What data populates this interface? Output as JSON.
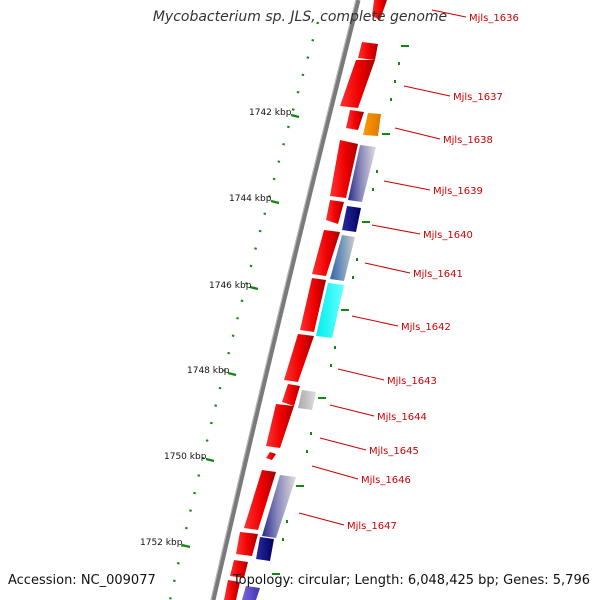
{
  "title": "Mycobacterium sp. JLS, complete genome",
  "accession_text": "Accession: NC_009077",
  "summary_text": "Topology: circular; Length: 6,048,425 bp; Genes: 5,796",
  "colors": {
    "backbone": "#888888",
    "tick": "#118811",
    "label": "#cc0000",
    "cds": "#ee0000",
    "orange": "#ff8800",
    "navy": "#000080",
    "steel": "#4477aa",
    "cyan": "#00ffff",
    "grey": "#bbbbbb",
    "indigo": "#6655cc"
  },
  "ruler_labels": [
    {
      "id": "kbp-1742",
      "text": "1742 kbp"
    },
    {
      "id": "kbp-1744",
      "text": "1744 kbp"
    },
    {
      "id": "kbp-1746",
      "text": "1746 kbp"
    },
    {
      "id": "kbp-1748",
      "text": "1748 kbp"
    },
    {
      "id": "kbp-1750",
      "text": "1750 kbp"
    },
    {
      "id": "kbp-1752",
      "text": "1752 kbp"
    }
  ],
  "gene_labels": [
    {
      "id": "mjls-1636",
      "text": "Mjls_1636"
    },
    {
      "id": "mjls-1637",
      "text": "Mjls_1637"
    },
    {
      "id": "mjls-1638",
      "text": "Mjls_1638"
    },
    {
      "id": "mjls-1639",
      "text": "Mjls_1639"
    },
    {
      "id": "mjls-1640",
      "text": "Mjls_1640"
    },
    {
      "id": "mjls-1641",
      "text": "Mjls_1641"
    },
    {
      "id": "mjls-1642",
      "text": "Mjls_1642"
    },
    {
      "id": "mjls-1643",
      "text": "Mjls_1643"
    },
    {
      "id": "mjls-1644",
      "text": "Mjls_1644"
    },
    {
      "id": "mjls-1645",
      "text": "Mjls_1645"
    },
    {
      "id": "mjls-1646",
      "text": "Mjls_1646"
    },
    {
      "id": "mjls-1647",
      "text": "Mjls_1647"
    }
  ]
}
